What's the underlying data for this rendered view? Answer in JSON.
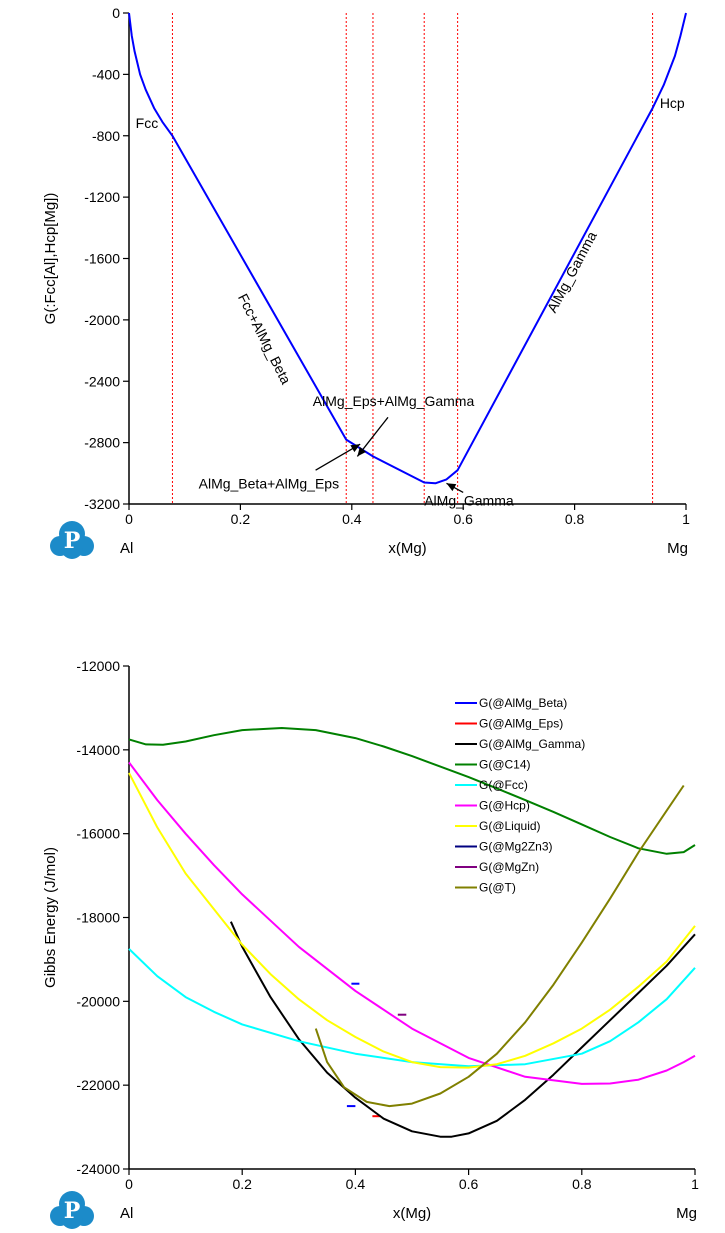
{
  "figure": {
    "logo_icon": "pandat-p-logo-icon"
  },
  "chart_data": [
    {
      "type": "line",
      "xlabel": "x(Mg)",
      "ylabel": "G(:Fcc[Al],Hcp[Mg])",
      "x_left_label": "Al",
      "x_right_label": "Mg",
      "xlim": [
        0,
        1
      ],
      "ylim": [
        -3200,
        0
      ],
      "xticks": [
        0,
        0.2,
        0.4,
        0.6,
        0.8,
        1
      ],
      "xtick_labels": [
        "0",
        "0.2",
        "0.4",
        "0.6",
        "0.8",
        "1"
      ],
      "yticks": [
        0,
        -400,
        -800,
        -1200,
        -1600,
        -2000,
        -2400,
        -2800,
        -3200
      ],
      "ytick_labels": [
        "0",
        "-400",
        "-800",
        "-1200",
        "-1600",
        "-2000",
        "-2400",
        "-2800",
        "-3200"
      ],
      "grid": false,
      "boundaries": [
        0.078,
        0.39,
        0.438,
        0.53,
        0.59,
        0.94
      ],
      "boundary_color": "#ff0000",
      "series": [
        {
          "color": "#0000ff",
          "x": [
            0,
            0.005,
            0.01,
            0.02,
            0.03,
            0.045,
            0.06,
            0.078,
            0.39,
            0.438,
            0.53,
            0.55,
            0.57,
            0.59,
            0.94,
            0.96,
            0.98,
            0.99,
            1
          ],
          "y": [
            0,
            -150,
            -250,
            -400,
            -500,
            -620,
            -710,
            -800,
            -2780,
            -2890,
            -3060,
            -3065,
            -3040,
            -2980,
            -620,
            -470,
            -280,
            -150,
            0
          ]
        }
      ],
      "annotations": [
        {
          "text": "Fcc",
          "x": 0.012,
          "y": -750,
          "angle": 0
        },
        {
          "text": "Hcp",
          "x": 0.953,
          "y": -620,
          "angle": 0
        },
        {
          "text": "Fcc+AlMg_Beta",
          "x": 0.195,
          "y": -1850,
          "angle": 63
        },
        {
          "text": "AlMg_Gamma",
          "x": 0.765,
          "y": -1960,
          "angle": -62
        },
        {
          "text": "AlMg_Eps+AlMg_Gamma",
          "x": 0.33,
          "y": -2560,
          "angle": 0
        },
        {
          "text": "AlMg_Beta+AlMg_Eps",
          "x": 0.125,
          "y": -3100,
          "angle": 0
        },
        {
          "text": "AlMg_Gamma",
          "x": 0.53,
          "y": -3210,
          "angle": 0
        }
      ],
      "arrows": [
        {
          "from": [
            0.465,
            -2635
          ],
          "to": [
            0.41,
            -2890
          ]
        },
        {
          "from": [
            0.335,
            -2980
          ],
          "to": [
            0.415,
            -2810
          ]
        },
        {
          "from": [
            0.6,
            -3125
          ],
          "to": [
            0.57,
            -3065
          ]
        }
      ]
    },
    {
      "type": "line",
      "xlabel": "x(Mg)",
      "ylabel": "Gibbs Energy (J/mol)",
      "x_left_label": "Al",
      "x_right_label": "Mg",
      "xlim": [
        0,
        1
      ],
      "ylim": [
        -24000,
        -12000
      ],
      "xticks": [
        0,
        0.2,
        0.4,
        0.6,
        0.8,
        1
      ],
      "xtick_labels": [
        "0",
        "0.2",
        "0.4",
        "0.6",
        "0.8",
        "1"
      ],
      "yticks": [
        -12000,
        -14000,
        -16000,
        -18000,
        -20000,
        -22000,
        -24000
      ],
      "ytick_labels": [
        "-12000",
        "-14000",
        "-16000",
        "-18000",
        "-20000",
        "-22000",
        "-24000"
      ],
      "grid": false,
      "legend_position": "top-right",
      "series": [
        {
          "name": "G(@AlMg_Beta)",
          "color": "#0000ff",
          "x": [
            0.385,
            0.4
          ],
          "y": [
            -22500,
            -22500
          ],
          "extra": {
            "x": [
              0.393,
              0.407
            ],
            "y": [
              -19580,
              -19580
            ]
          }
        },
        {
          "name": "G(@AlMg_Eps)",
          "color": "#ff0000",
          "x": [
            0.43,
            0.445
          ],
          "y": [
            -22740,
            -22740
          ]
        },
        {
          "name": "G(@AlMg_Gamma)",
          "color": "#000000",
          "x": [
            0.18,
            0.2,
            0.25,
            0.3,
            0.35,
            0.4,
            0.45,
            0.5,
            0.55,
            0.57,
            0.6,
            0.65,
            0.7,
            0.75,
            0.8,
            0.85,
            0.9,
            0.95,
            1
          ],
          "y": [
            -18100,
            -18700,
            -19900,
            -20900,
            -21700,
            -22300,
            -22800,
            -23100,
            -23230,
            -23230,
            -23150,
            -22850,
            -22350,
            -21750,
            -21100,
            -20450,
            -19800,
            -19150,
            -18400
          ]
        },
        {
          "name": "G(@C14)",
          "color": "#008000",
          "x": [
            0,
            0.03,
            0.06,
            0.1,
            0.15,
            0.2,
            0.27,
            0.33,
            0.4,
            0.45,
            0.5,
            0.55,
            0.6,
            0.65,
            0.7,
            0.75,
            0.8,
            0.85,
            0.9,
            0.95,
            0.98,
            1
          ],
          "y": [
            -13750,
            -13870,
            -13880,
            -13800,
            -13650,
            -13530,
            -13480,
            -13530,
            -13720,
            -13920,
            -14150,
            -14400,
            -14650,
            -14920,
            -15200,
            -15480,
            -15780,
            -16080,
            -16350,
            -16480,
            -16440,
            -16270
          ]
        },
        {
          "name": "G(@Fcc)",
          "color": "#00ffff",
          "x": [
            0,
            0.05,
            0.1,
            0.15,
            0.2,
            0.3,
            0.4,
            0.5,
            0.6,
            0.7,
            0.8,
            0.85,
            0.9,
            0.95,
            1
          ],
          "y": [
            -18750,
            -19400,
            -19900,
            -20250,
            -20550,
            -20950,
            -21250,
            -21450,
            -21550,
            -21500,
            -21250,
            -20950,
            -20500,
            -19950,
            -19200
          ]
        },
        {
          "name": "G(@Hcp)",
          "color": "#ff00ff",
          "x": [
            0,
            0.05,
            0.1,
            0.15,
            0.2,
            0.3,
            0.4,
            0.5,
            0.6,
            0.7,
            0.8,
            0.85,
            0.9,
            0.95,
            0.98,
            1
          ],
          "y": [
            -14300,
            -15200,
            -16000,
            -16750,
            -17450,
            -18700,
            -19750,
            -20650,
            -21350,
            -21800,
            -21970,
            -21960,
            -21870,
            -21650,
            -21450,
            -21300
          ]
        },
        {
          "name": "G(@Liquid)",
          "color": "#ffff00",
          "x": [
            0,
            0.05,
            0.1,
            0.15,
            0.2,
            0.25,
            0.3,
            0.35,
            0.4,
            0.45,
            0.5,
            0.55,
            0.6,
            0.65,
            0.7,
            0.75,
            0.8,
            0.85,
            0.9,
            0.95,
            1
          ],
          "y": [
            -14550,
            -15850,
            -16950,
            -17800,
            -18650,
            -19350,
            -19950,
            -20450,
            -20850,
            -21200,
            -21450,
            -21570,
            -21580,
            -21500,
            -21300,
            -21000,
            -20650,
            -20200,
            -19650,
            -19050,
            -18200
          ]
        },
        {
          "name": "G(@Mg2Zn3)",
          "color": "#000080",
          "x": [],
          "y": []
        },
        {
          "name": "G(@MgZn)",
          "color": "#800080",
          "x": [
            0.475,
            0.49
          ],
          "y": [
            -20320,
            -20320
          ]
        },
        {
          "name": "G(@T)",
          "color": "#808000",
          "x": [
            0.33,
            0.35,
            0.38,
            0.42,
            0.46,
            0.5,
            0.55,
            0.6,
            0.65,
            0.7,
            0.75,
            0.8,
            0.85,
            0.9,
            0.95,
            0.98
          ],
          "y": [
            -20650,
            -21450,
            -22050,
            -22400,
            -22500,
            -22440,
            -22200,
            -21800,
            -21250,
            -20500,
            -19600,
            -18600,
            -17550,
            -16450,
            -15450,
            -14850
          ]
        }
      ]
    }
  ]
}
